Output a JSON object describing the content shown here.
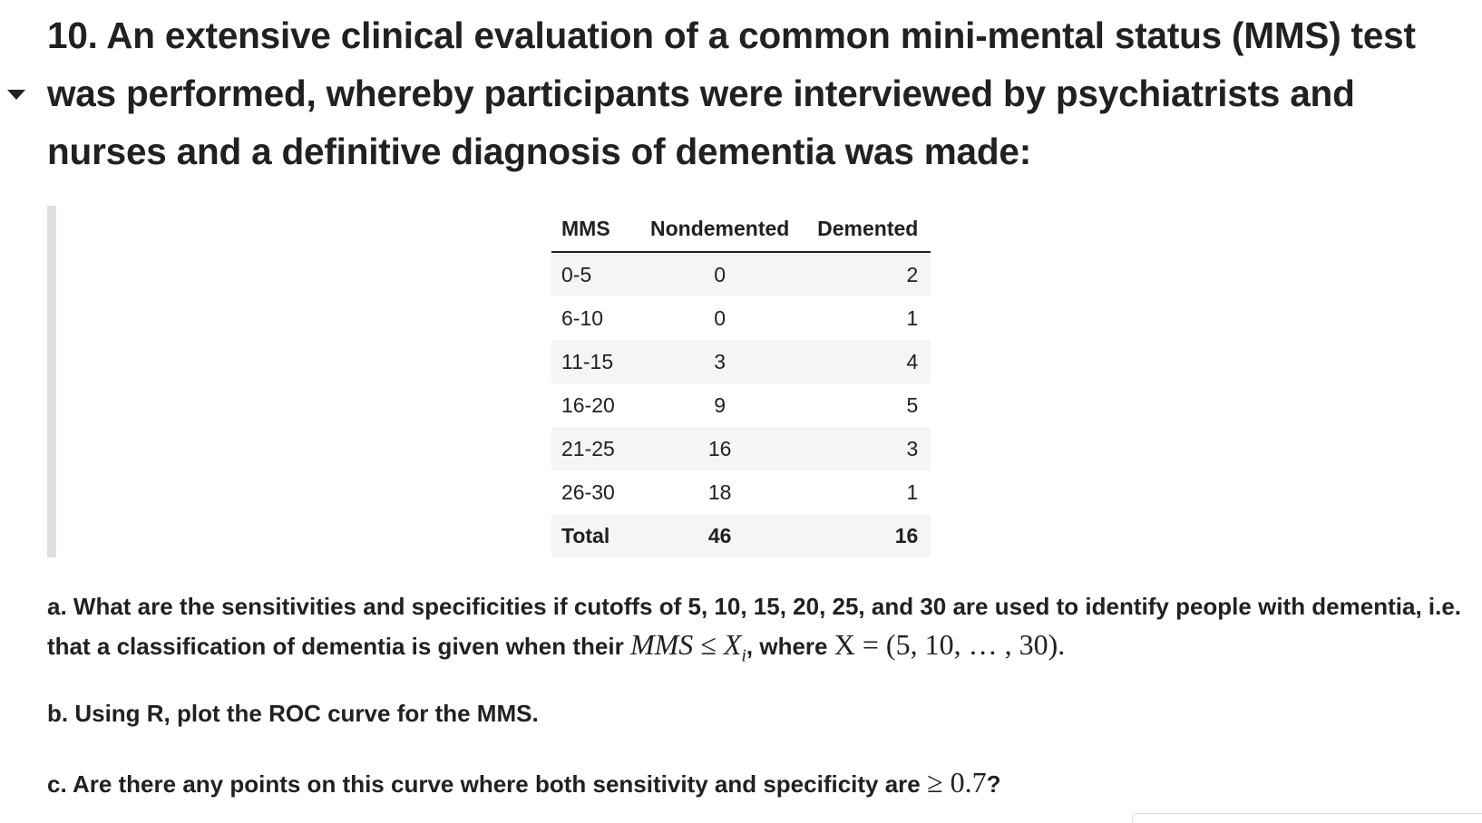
{
  "heading": "10. An extensive clinical evaluation of a common mini-mental status (MMS) test was performed, whereby participants were interviewed by psychiatrists and nurses and a definitive diagnosis of dementia was made:",
  "table": {
    "columns": [
      "MMS",
      "Nondemented",
      "Demented"
    ],
    "rows": [
      {
        "mms": "0-5",
        "nondemented": "0",
        "demented": "2"
      },
      {
        "mms": "6-10",
        "nondemented": "0",
        "demented": "1"
      },
      {
        "mms": "11-15",
        "nondemented": "3",
        "demented": "4"
      },
      {
        "mms": "16-20",
        "nondemented": "9",
        "demented": "5"
      },
      {
        "mms": "21-25",
        "nondemented": "16",
        "demented": "3"
      },
      {
        "mms": "26-30",
        "nondemented": "18",
        "demented": "1"
      }
    ],
    "total": {
      "label": "Total",
      "nondemented": "46",
      "demented": "16"
    }
  },
  "questions": {
    "a": {
      "text_1": "a. What are the sensitivities and specificities if cutoffs of 5, 10, 15, 20, 25, and 30 are used to identify people with dementia, i.e. that a classification of dementia is given when their ",
      "math_lhs": "MMS",
      "math_leq": " ≤ ",
      "math_x": "X",
      "math_sub": "i",
      "text_2": ", where ",
      "math_def": "X = (5, 10, … , 30)."
    },
    "b": {
      "text": "b. Using R, plot the ROC curve for the MMS."
    },
    "c": {
      "text": "c. Are there any points on this curve where both sensitivity and specificity are ",
      "math": "≥ 0.7",
      "text_end": "?"
    }
  }
}
